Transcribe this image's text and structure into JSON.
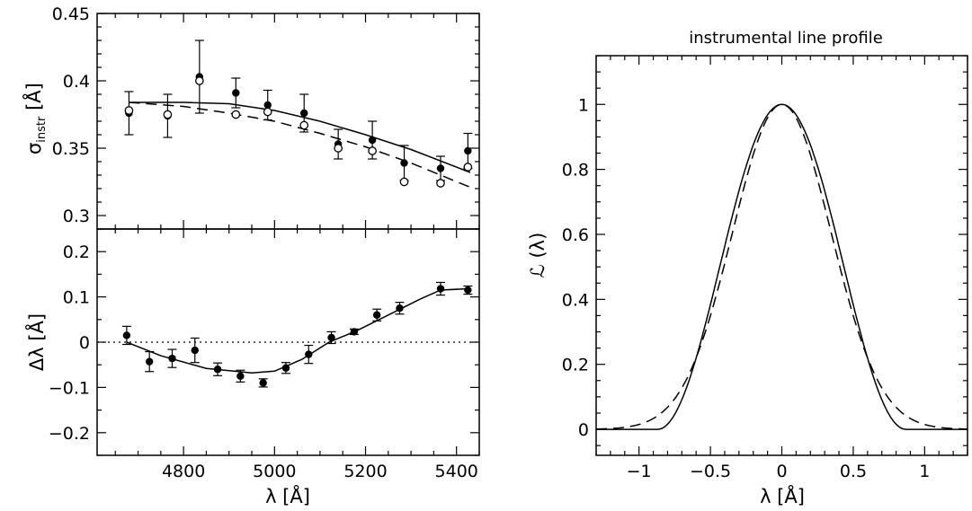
{
  "chart_data": [
    {
      "id": "sigma",
      "type": "scatter",
      "title": "",
      "ylabel_main": "σ",
      "ylabel_sub": "instr",
      "ylabel_unit": " [Å]",
      "xlim": [
        4610,
        5450
      ],
      "ylim": [
        0.29,
        0.45
      ],
      "yticks": [
        0.3,
        0.35,
        0.4,
        0.45
      ],
      "ytick_labels": [
        "0.3",
        "0.35",
        "0.4",
        "0.45"
      ],
      "series": [
        {
          "marker": "filled-circle",
          "x": [
            4680,
            4765,
            4835,
            4915,
            4985,
            5065,
            5140,
            5215,
            5285,
            5365,
            5425
          ],
          "y": [
            0.376,
            0.374,
            0.403,
            0.391,
            0.382,
            0.376,
            0.353,
            0.356,
            0.339,
            0.335,
            0.348
          ],
          "err": [
            0.016,
            0.016,
            0.027,
            0.011,
            0.011,
            0.014,
            0.011,
            0.014,
            0.013,
            0.009,
            0.013
          ]
        },
        {
          "marker": "open-circle",
          "x": [
            4680,
            4765,
            4835,
            4915,
            4985,
            5065,
            5140,
            5215,
            5285,
            5365,
            5425
          ],
          "y": [
            0.378,
            0.375,
            0.4,
            0.375,
            0.377,
            0.367,
            0.35,
            0.348,
            0.325,
            0.324,
            0.336
          ]
        }
      ],
      "lines": [
        {
          "style": "solid",
          "x": [
            4680,
            4800,
            4900,
            5000,
            5100,
            5200,
            5300,
            5430
          ],
          "y": [
            0.384,
            0.384,
            0.383,
            0.378,
            0.37,
            0.36,
            0.349,
            0.332
          ]
        },
        {
          "style": "dashed",
          "x": [
            4680,
            4800,
            4900,
            5000,
            5100,
            5200,
            5300,
            5430
          ],
          "y": [
            0.384,
            0.381,
            0.376,
            0.37,
            0.361,
            0.351,
            0.339,
            0.321
          ]
        }
      ]
    },
    {
      "id": "dlambda",
      "type": "scatter",
      "title": "",
      "ylabel": "Δλ [Å]",
      "xlabel": "λ [Å]",
      "xlim": [
        4610,
        5450
      ],
      "ylim": [
        -0.25,
        0.25
      ],
      "xticks": [
        4800,
        5000,
        5200,
        5400
      ],
      "xtick_labels": [
        "4800",
        "5000",
        "5200",
        "5400"
      ],
      "yticks": [
        -0.2,
        -0.1,
        0,
        0.1,
        0.2
      ],
      "ytick_labels": [
        "−0.2",
        "−0.1",
        "0",
        "0.1",
        "0.2"
      ],
      "series": [
        {
          "marker": "filled-circle",
          "x": [
            4675,
            4725,
            4775,
            4825,
            4875,
            4925,
            4975,
            5025,
            5075,
            5125,
            5175,
            5225,
            5275,
            5365,
            5425
          ],
          "y": [
            0.015,
            -0.043,
            -0.036,
            -0.018,
            -0.06,
            -0.075,
            -0.09,
            -0.057,
            -0.027,
            0.01,
            0.023,
            0.06,
            0.075,
            0.118,
            0.115
          ],
          "err": [
            0.02,
            0.022,
            0.02,
            0.027,
            0.014,
            0.013,
            0.009,
            0.012,
            0.02,
            0.013,
            0.006,
            0.013,
            0.013,
            0.014,
            0.009
          ]
        }
      ],
      "lines": [
        {
          "style": "solid",
          "x": [
            4675,
            4750,
            4850,
            4950,
            5000,
            5060,
            5120,
            5180,
            5250,
            5320,
            5365,
            5425
          ],
          "y": [
            0.0,
            -0.03,
            -0.058,
            -0.068,
            -0.064,
            -0.038,
            0.0,
            0.025,
            0.06,
            0.095,
            0.115,
            0.118
          ]
        },
        {
          "style": "dotted",
          "x": [
            4610,
            5450
          ],
          "y": [
            0,
            0
          ]
        }
      ]
    },
    {
      "id": "lineprofile",
      "type": "line",
      "title": "instrumental line profile",
      "ylabel": "ℒ (λ)",
      "xlabel": "λ [Å]",
      "xlim": [
        -1.3,
        1.3
      ],
      "ylim": [
        -0.08,
        1.15
      ],
      "xticks": [
        -1,
        -0.5,
        0,
        0.5,
        1
      ],
      "xtick_labels": [
        "−1",
        "−0.5",
        "0",
        "0.5",
        "1"
      ],
      "yticks": [
        0,
        0.2,
        0.4,
        0.6,
        0.8,
        1
      ],
      "ytick_labels": [
        "0",
        "0.2",
        "0.4",
        "0.6",
        "0.8",
        "1"
      ],
      "series": [
        {
          "style": "solid",
          "model": "truncated-cosine",
          "half_width": 0.87
        },
        {
          "style": "dashed",
          "model": "gaussian",
          "sigma": 0.345
        }
      ]
    }
  ]
}
